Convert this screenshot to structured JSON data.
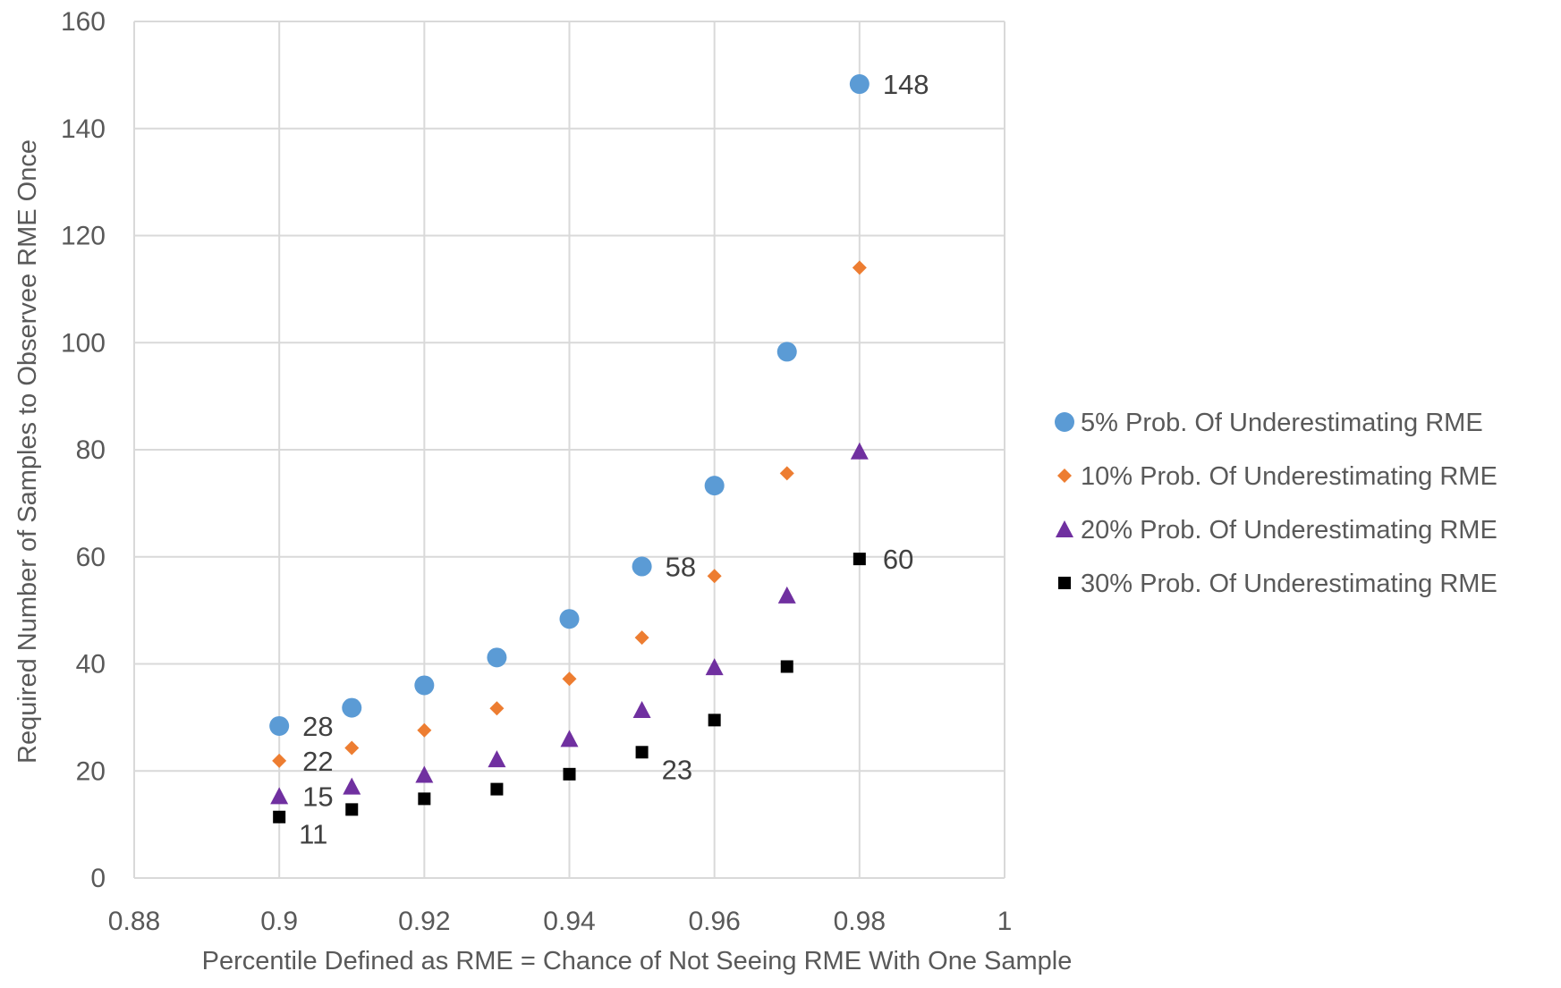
{
  "chart_data": {
    "type": "scatter",
    "title": "",
    "xlabel": "Percentile Defined as RME =  Chance of Not Seeing RME With One Sample",
    "ylabel": "Required Number of Samples to Observee RME Once",
    "xlim": [
      0.88,
      1
    ],
    "ylim": [
      0,
      160
    ],
    "x_ticks": [
      0.88,
      0.9,
      0.92,
      0.94,
      0.96,
      0.98,
      1
    ],
    "x_tick_labels": [
      "0.88",
      "0.9",
      "0.92",
      "0.94",
      "0.96",
      "0.98",
      "1"
    ],
    "y_ticks": [
      0,
      20,
      40,
      60,
      80,
      100,
      120,
      140,
      160
    ],
    "y_tick_labels": [
      "0",
      "20",
      "40",
      "60",
      "80",
      "100",
      "120",
      "140",
      "160"
    ],
    "grid": true,
    "legend_position": "right",
    "series": [
      {
        "name": "5% Prob. Of Underestimating RME",
        "marker": "circle",
        "color": "#5B9BD5",
        "x": [
          0.9,
          0.91,
          0.92,
          0.93,
          0.94,
          0.95,
          0.96,
          0.97,
          0.98
        ],
        "y": [
          28.4,
          31.8,
          36,
          41.2,
          48.4,
          58.2,
          73.3,
          98.3,
          148.3
        ]
      },
      {
        "name": "10% Prob. Of Underestimating RME",
        "marker": "diamond",
        "color": "#ED7D31",
        "x": [
          0.9,
          0.91,
          0.92,
          0.93,
          0.94,
          0.95,
          0.96,
          0.97,
          0.98
        ],
        "y": [
          21.9,
          24.3,
          27.6,
          31.7,
          37.2,
          44.9,
          56.4,
          75.6,
          114
        ]
      },
      {
        "name": "20% Prob. Of Underestimating RME",
        "marker": "triangle",
        "color": "#7030A0",
        "x": [
          0.9,
          0.91,
          0.92,
          0.93,
          0.94,
          0.95,
          0.96,
          0.97,
          0.98
        ],
        "y": [
          15.3,
          17.1,
          19.3,
          22.2,
          26,
          31.4,
          39.4,
          52.8,
          79.7
        ]
      },
      {
        "name": "30% Prob. Of Underestimating RME",
        "marker": "square",
        "color": "#000000",
        "x": [
          0.9,
          0.91,
          0.92,
          0.93,
          0.94,
          0.95,
          0.96,
          0.97,
          0.98
        ],
        "y": [
          11.4,
          12.8,
          14.8,
          16.6,
          19.4,
          23.5,
          29.5,
          39.5,
          59.6
        ]
      }
    ],
    "data_labels": [
      {
        "text": "148",
        "x": 0.98,
        "y": 148.3,
        "anchor": "right"
      },
      {
        "text": "58",
        "x": 0.95,
        "y": 58.2,
        "anchor": "right"
      },
      {
        "text": "60",
        "x": 0.98,
        "y": 59.6,
        "anchor": "right"
      },
      {
        "text": "28",
        "x": 0.9,
        "y": 28.4,
        "anchor": "right"
      },
      {
        "text": "22",
        "x": 0.9,
        "y": 21.9,
        "anchor": "right"
      },
      {
        "text": "15",
        "x": 0.9,
        "y": 15.3,
        "anchor": "right"
      },
      {
        "text": "11",
        "x": 0.9,
        "y": 11.4,
        "anchor": "below-right"
      },
      {
        "text": "23",
        "x": 0.95,
        "y": 23.5,
        "anchor": "below-right"
      }
    ]
  }
}
